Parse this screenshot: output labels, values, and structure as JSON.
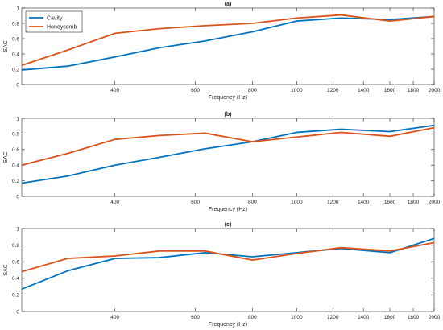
{
  "chart_data": [
    {
      "type": "line",
      "title": "(a)",
      "xlabel": "Frequency (Hz)",
      "ylabel": "SAC",
      "xscale": "log",
      "xlim": [
        250,
        2000
      ],
      "ylim": [
        0,
        1
      ],
      "xticks": [
        400,
        600,
        800,
        1000,
        1200,
        1400,
        1600,
        1800,
        2000
      ],
      "yticks": [
        0,
        0.2,
        0.4,
        0.6,
        0.8,
        1
      ],
      "ytick_labels": [
        "0",
        "0.2",
        "0.4",
        "0.6",
        "0.8",
        "1"
      ],
      "grid": false,
      "legend": "top-left",
      "x": [
        250,
        315,
        400,
        500,
        630,
        800,
        1000,
        1250,
        1600,
        2000
      ],
      "series": [
        {
          "name": "Cavity",
          "color": "#0072BD",
          "values": [
            0.19,
            0.24,
            0.36,
            0.48,
            0.57,
            0.69,
            0.83,
            0.87,
            0.85,
            0.89
          ]
        },
        {
          "name": "Honeycomb",
          "color": "#D95319",
          "values": [
            0.25,
            0.45,
            0.67,
            0.73,
            0.77,
            0.8,
            0.87,
            0.91,
            0.83,
            0.89
          ]
        }
      ]
    },
    {
      "type": "line",
      "title": "(b)",
      "xlabel": "Frequency (Hz)",
      "ylabel": "SAC",
      "xscale": "log",
      "xlim": [
        250,
        2000
      ],
      "ylim": [
        0,
        1
      ],
      "xticks": [
        400,
        600,
        800,
        1000,
        1200,
        1400,
        1600,
        1800,
        2000
      ],
      "yticks": [
        0,
        0.2,
        0.4,
        0.6,
        0.8,
        1
      ],
      "ytick_labels": [
        "0",
        "0.2",
        "0.4",
        "0.6",
        "0.8",
        "1"
      ],
      "grid": false,
      "x": [
        250,
        315,
        400,
        500,
        630,
        800,
        1000,
        1250,
        1600,
        2000
      ],
      "series": [
        {
          "name": "Cavity",
          "color": "#0072BD",
          "values": [
            0.17,
            0.26,
            0.4,
            0.5,
            0.61,
            0.7,
            0.82,
            0.86,
            0.83,
            0.91
          ]
        },
        {
          "name": "Honeycomb",
          "color": "#D95319",
          "values": [
            0.4,
            0.55,
            0.73,
            0.78,
            0.81,
            0.7,
            0.76,
            0.82,
            0.77,
            0.88
          ]
        }
      ]
    },
    {
      "type": "line",
      "title": "(c)",
      "xlabel": "Frequency (Hz)",
      "ylabel": "SAC",
      "xscale": "log",
      "xlim": [
        250,
        2000
      ],
      "ylim": [
        0,
        1
      ],
      "xticks": [
        400,
        600,
        800,
        1000,
        1200,
        1400,
        1600,
        1800,
        2000
      ],
      "yticks": [
        0,
        0.2,
        0.4,
        0.6,
        0.8,
        1
      ],
      "ytick_labels": [
        "0",
        "0.2",
        "0.4",
        "0.6",
        "0.8",
        "1"
      ],
      "grid": false,
      "x": [
        250,
        315,
        400,
        500,
        630,
        800,
        1000,
        1250,
        1600,
        2000
      ],
      "series": [
        {
          "name": "Cavity",
          "color": "#0072BD",
          "values": [
            0.27,
            0.49,
            0.64,
            0.65,
            0.71,
            0.66,
            0.71,
            0.76,
            0.71,
            0.88
          ]
        },
        {
          "name": "Honeycomb",
          "color": "#D95319",
          "values": [
            0.48,
            0.64,
            0.67,
            0.73,
            0.73,
            0.62,
            0.7,
            0.77,
            0.73,
            0.83
          ]
        }
      ]
    }
  ]
}
